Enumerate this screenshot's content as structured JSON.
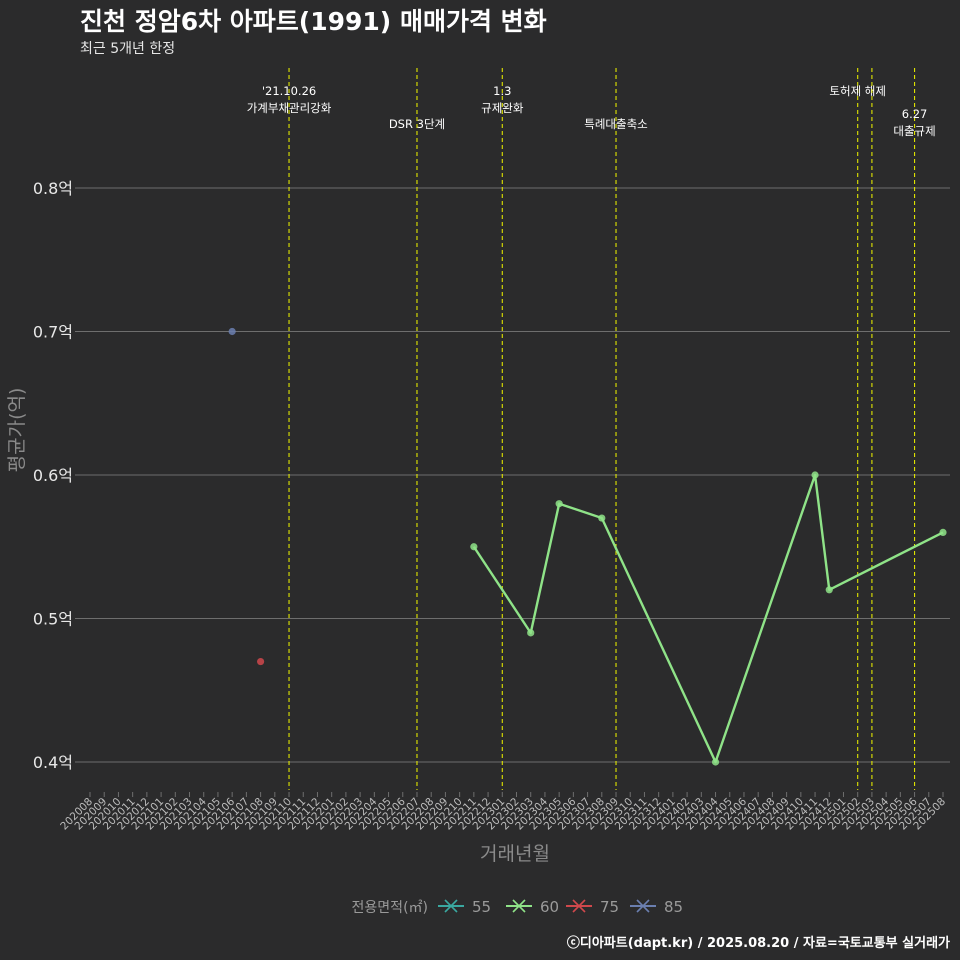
{
  "title": "진천 정암6차 아파트(1991) 매매가격 변화",
  "subtitle": "최근 5개년 한정",
  "caption": "ⓒ디아파트(dapt.kr) / 2025.08.20 / 자료=국토교통부 실거래가",
  "colors": {
    "background": "#2b2b2c",
    "grid": "#6e6e6e",
    "event_line": "#e1e600",
    "s55": "#3aa8a0",
    "s60": "#8fe388",
    "s75": "#d0484c",
    "s85": "#6b7fb0"
  },
  "chart_data": {
    "type": "line",
    "title": "진천 정암6차 아파트(1991) 매매가격 변화",
    "xlabel": "거래년월",
    "ylabel": "평균가(억)",
    "ylim": [
      0.38,
      0.88
    ],
    "yticks": [
      {
        "value": 0.4,
        "label": "0.4억"
      },
      {
        "value": 0.5,
        "label": "0.5억"
      },
      {
        "value": 0.6,
        "label": "0.6억"
      },
      {
        "value": 0.7,
        "label": "0.7억"
      },
      {
        "value": 0.8,
        "label": "0.8억"
      }
    ],
    "categories": [
      "202008",
      "202009",
      "202010",
      "202011",
      "202012",
      "202101",
      "202102",
      "202103",
      "202104",
      "202105",
      "202106",
      "202107",
      "202108",
      "202109",
      "202110",
      "202111",
      "202112",
      "202201",
      "202202",
      "202203",
      "202204",
      "202205",
      "202206",
      "202207",
      "202208",
      "202209",
      "202210",
      "202211",
      "202212",
      "202301",
      "202302",
      "202303",
      "202304",
      "202305",
      "202306",
      "202307",
      "202308",
      "202309",
      "202310",
      "202311",
      "202312",
      "202401",
      "202402",
      "202403",
      "202404",
      "202405",
      "202406",
      "202407",
      "202408",
      "202409",
      "202410",
      "202411",
      "202412",
      "202501",
      "202502",
      "202503",
      "202504",
      "202505",
      "202506",
      "202507",
      "202508"
    ],
    "legend": {
      "title": "전용면적(㎡)",
      "position": "bottom",
      "items": [
        {
          "label": "55",
          "key": "s55"
        },
        {
          "label": "60",
          "key": "s60"
        },
        {
          "label": "75",
          "key": "s75"
        },
        {
          "label": "85",
          "key": "s85"
        }
      ]
    },
    "series": [
      {
        "name": "55",
        "key": "s55",
        "line": true,
        "points": []
      },
      {
        "name": "60",
        "key": "s60",
        "line": true,
        "points": [
          {
            "x": "202303",
            "y": 0.49
          },
          {
            "x": "202211",
            "y": 0.55
          },
          {
            "x": "202305",
            "y": 0.58
          },
          {
            "x": "202308",
            "y": 0.57
          },
          {
            "x": "202404",
            "y": 0.4
          },
          {
            "x": "202411",
            "y": 0.6
          },
          {
            "x": "202412",
            "y": 0.52
          },
          {
            "x": "202508",
            "y": 0.56
          }
        ]
      },
      {
        "name": "75",
        "key": "s75",
        "line": false,
        "points": [
          {
            "x": "202108",
            "y": 0.47
          }
        ]
      },
      {
        "name": "85",
        "key": "s85",
        "line": false,
        "points": [
          {
            "x": "202106",
            "y": 0.7
          }
        ]
      }
    ],
    "events": [
      {
        "x": "202110",
        "lines": [
          "'21.10.26",
          "가계부채관리강화"
        ],
        "level": 1
      },
      {
        "x": "202207",
        "lines": [
          "DSR 3단계"
        ],
        "level": 2
      },
      {
        "x": "202301",
        "lines": [
          "1.3",
          "규제완화"
        ],
        "level": 1
      },
      {
        "x": "202309",
        "lines": [
          "특례대출축소"
        ],
        "level": 2
      },
      {
        "x": "202502",
        "lines": [
          "토허제 해제"
        ],
        "level": 1
      },
      {
        "x": "202503",
        "lines": [],
        "level": 1
      },
      {
        "x": "202506",
        "lines": [
          "6.27",
          "대출규제"
        ],
        "level": 3
      }
    ]
  }
}
